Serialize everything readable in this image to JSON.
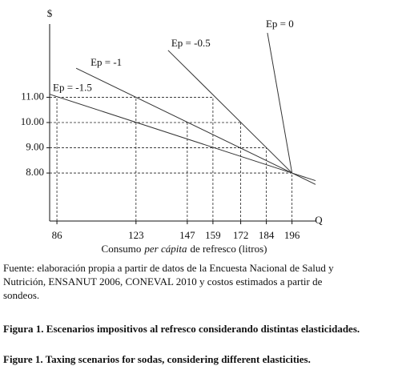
{
  "chart_data": {
    "type": "line",
    "y_label": "$",
    "x_label_parts": [
      "Consumo",
      "per cápita",
      "de refresco (litros)"
    ],
    "x_axis_name": "Q",
    "xlim": [
      82.6,
      207
    ],
    "ylim": [
      6.1,
      13.9
    ],
    "xticks": [
      86,
      123,
      147,
      159,
      172,
      184,
      196
    ],
    "yticks": [
      {
        "value": 8,
        "label": "8.00"
      },
      {
        "value": 9,
        "label": "9.00"
      },
      {
        "value": 10,
        "label": "10.00"
      },
      {
        "value": 11,
        "label": "11.00"
      }
    ],
    "series": [
      {
        "name": "Ep = 0",
        "color": "#333333",
        "x": [
          184.5,
          196
        ],
        "values": [
          13.55,
          8
        ]
      },
      {
        "name": "Ep = -0.5",
        "color": "#333333",
        "x": [
          138,
          196
        ],
        "values": [
          12.86,
          8
        ]
      },
      {
        "name": "Ep = -1",
        "color": "#333333",
        "x": [
          95,
          196,
          207
        ],
        "values": [
          12.15,
          8,
          7.55
        ]
      },
      {
        "name": "Ep = -1.5",
        "color": "#333333",
        "x": [
          82.6,
          196,
          207
        ],
        "values": [
          11.12,
          8,
          7.7
        ]
      }
    ],
    "guides": [
      {
        "x": 86,
        "y": 11
      },
      {
        "x": 123,
        "y": 11
      },
      {
        "x": 159,
        "y": 11
      },
      {
        "x": 147,
        "y": 10
      },
      {
        "x": 172,
        "y": 10
      },
      {
        "x": 184,
        "y": 9
      },
      {
        "x": 196,
        "y": 8
      }
    ]
  },
  "caption": {
    "source": "Fuente: elaboración propia a partir de datos de la Encuesta Nacional de Salud y Nutrición, ENSANUT 2006, CONEVAL 2010 y costos estimados a partir de sondeos.",
    "figure_es": "Figura 1. Escenarios impositivos al refresco considerando distintas elasticidades.",
    "figure_en": "Figure 1. Taxing scenarios for sodas, considering different elasticities."
  }
}
